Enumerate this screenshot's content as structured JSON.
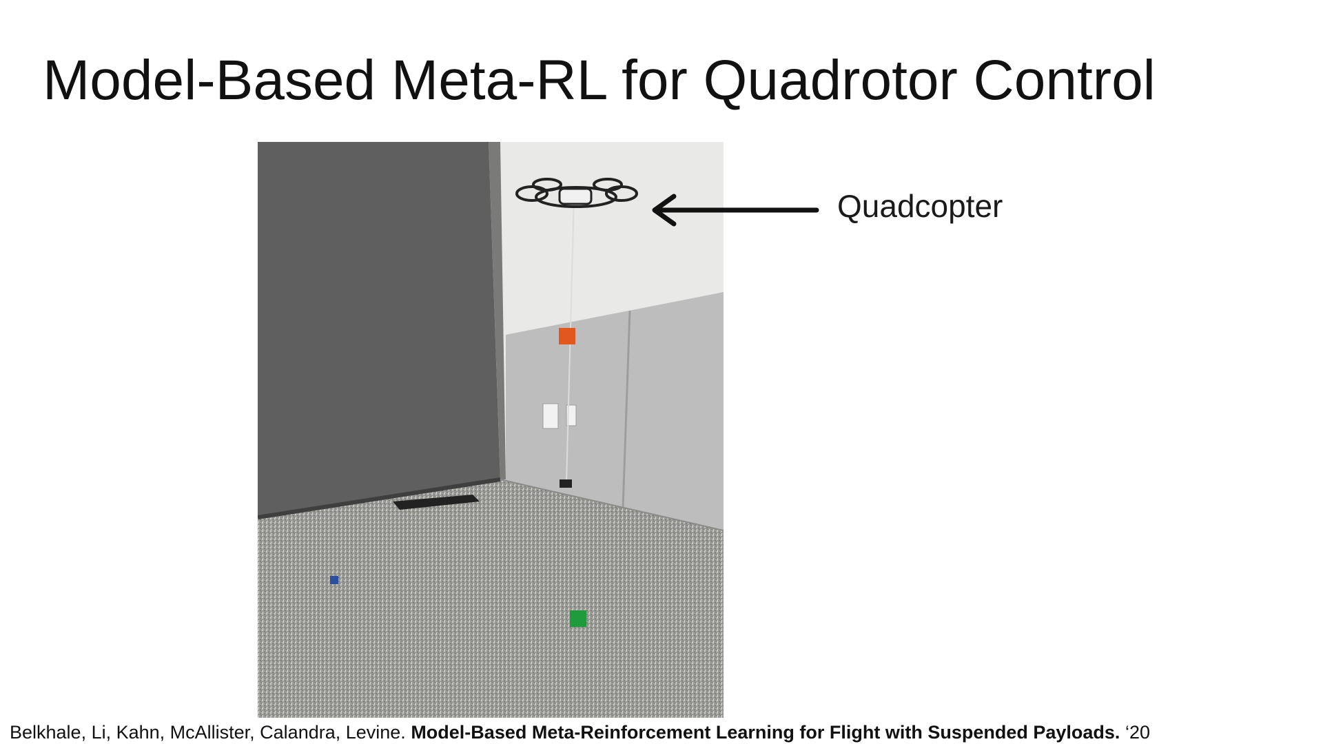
{
  "slide": {
    "title": "Model-Based Meta-RL for Quadrotor Control"
  },
  "figure": {
    "annotation_label": "Quadcopter",
    "colors": {
      "dark_wall": "#5f5f5f",
      "light_wall": "#e9e9e7",
      "panel": "#bdbdbd",
      "carpet": "#9a9a97",
      "payload": "#e2571f",
      "blue_block": "#2a4f9e",
      "green_block": "#1f9a3d"
    },
    "icons": [
      "quadcopter-icon",
      "arrow-left-icon"
    ]
  },
  "citation": {
    "authors": "Belkhale, Li, Kahn, McAllister, Calandra, Levine. ",
    "paper_title": "Model-Based Meta-Reinforcement Learning for Flight with Suspended Payloads.",
    "year": " ‘20"
  }
}
